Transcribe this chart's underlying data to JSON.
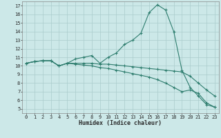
{
  "xlabel": "Humidex (Indice chaleur)",
  "ylabel": "",
  "bg_color": "#cce8e8",
  "grid_color": "#aacccc",
  "line_color": "#2e7d6e",
  "xlim": [
    -0.5,
    23.5
  ],
  "ylim": [
    4.5,
    17.5
  ],
  "xticks": [
    0,
    1,
    2,
    3,
    4,
    5,
    6,
    7,
    8,
    9,
    10,
    11,
    12,
    13,
    14,
    15,
    16,
    17,
    18,
    19,
    20,
    21,
    22,
    23
  ],
  "yticks": [
    5,
    6,
    7,
    8,
    9,
    10,
    11,
    12,
    13,
    14,
    15,
    16,
    17
  ],
  "line1_x": [
    0,
    1,
    2,
    3,
    4,
    5,
    6,
    7,
    8,
    9,
    10,
    11,
    12,
    13,
    14,
    15,
    16,
    17,
    18,
    19,
    20,
    21,
    22,
    23
  ],
  "line1_y": [
    10.3,
    10.5,
    10.6,
    10.6,
    10.0,
    10.3,
    10.8,
    11.0,
    11.2,
    10.3,
    11.0,
    11.5,
    12.5,
    13.0,
    13.8,
    16.2,
    17.1,
    16.5,
    14.0,
    9.5,
    7.5,
    6.5,
    5.5,
    5.2
  ],
  "line2_x": [
    0,
    1,
    2,
    3,
    4,
    5,
    6,
    7,
    8,
    9,
    10,
    11,
    12,
    13,
    14,
    15,
    16,
    17,
    18,
    19,
    20,
    21,
    22,
    23
  ],
  "line2_y": [
    10.3,
    10.5,
    10.6,
    10.6,
    10.0,
    10.3,
    10.3,
    10.3,
    10.3,
    10.2,
    10.2,
    10.1,
    10.0,
    9.9,
    9.8,
    9.7,
    9.6,
    9.5,
    9.4,
    9.3,
    8.8,
    8.0,
    7.2,
    6.5
  ],
  "line3_x": [
    0,
    1,
    2,
    3,
    4,
    5,
    6,
    7,
    8,
    9,
    10,
    11,
    12,
    13,
    14,
    15,
    16,
    17,
    18,
    19,
    20,
    21,
    22,
    23
  ],
  "line3_y": [
    10.3,
    10.5,
    10.6,
    10.6,
    10.0,
    10.3,
    10.2,
    10.1,
    10.0,
    9.8,
    9.7,
    9.5,
    9.3,
    9.1,
    8.9,
    8.7,
    8.4,
    8.0,
    7.5,
    7.0,
    7.2,
    6.8,
    5.7,
    5.2
  ],
  "tick_fontsize": 5.0,
  "xlabel_fontsize": 6.0,
  "marker_size": 3.0,
  "linewidth": 0.8
}
